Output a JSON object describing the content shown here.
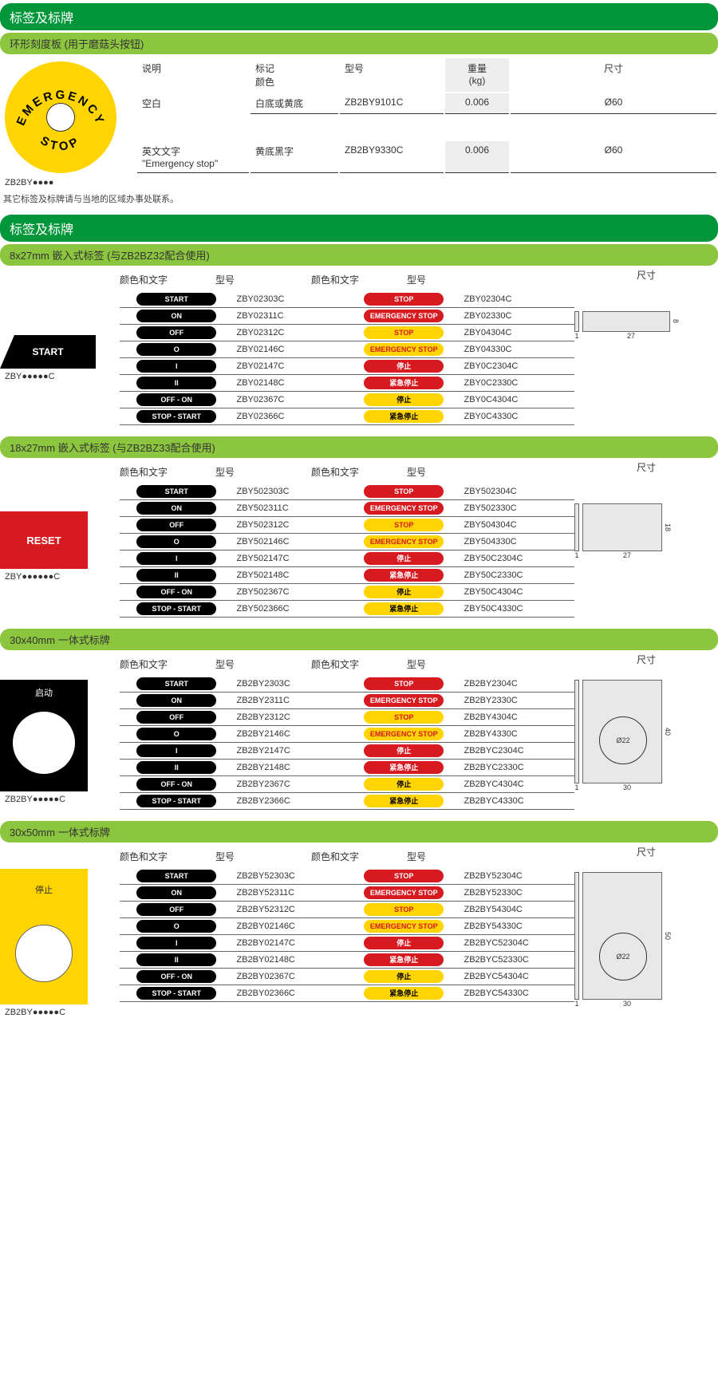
{
  "colors": {
    "primary_green": "#009639",
    "light_green": "#8cc63f",
    "red": "#d71920",
    "yellow": "#ffd400",
    "black": "#000000",
    "grey_bg": "#e8e8e8"
  },
  "section1": {
    "title": "标签及标牌",
    "subtitle": "环形刻度板 (用于磨菇头按钮)",
    "headers": {
      "desc": "说明",
      "mark_color": "标记\n颜色",
      "model": "型号",
      "weight": "重量\n(kg)",
      "size": "尺寸"
    },
    "rows": [
      {
        "desc": "空白",
        "mark": "白底或黄底",
        "model": "ZB2BY9101C",
        "weight": "0.006",
        "size": "Ø60"
      },
      {
        "desc": "英文文字\n\"Emergency stop\"",
        "mark": "黄底黑字",
        "model": "ZB2BY9330C",
        "weight": "0.006",
        "size": "Ø60"
      }
    ],
    "thumb_label": "ZB2BY●●●●",
    "circle_text_top": "EMERGENCY",
    "circle_text_bottom": "STOP",
    "note": "其它标签及标牌请与当地的区域办事处联系。"
  },
  "section2": {
    "title": "标签及标牌",
    "subtitle": "8x27mm 嵌入式标签 (与ZB2BZ32配合使用)",
    "headers": {
      "c1": "颜色和文字",
      "m1": "型号",
      "c2": "颜色和文字",
      "m2": "型号",
      "size": "尺寸"
    },
    "thumb_text": "START",
    "thumb_label": "ZBY●●●●●C",
    "rows": [
      {
        "p1": {
          "t": "START",
          "cls": "pill-black"
        },
        "m1": "ZBY02303C",
        "p2": {
          "t": "STOP",
          "cls": "pill-red"
        },
        "m2": "ZBY02304C"
      },
      {
        "p1": {
          "t": "ON",
          "cls": "pill-black"
        },
        "m1": "ZBY02311C",
        "p2": {
          "t": "EMERGENCY STOP",
          "cls": "pill-red"
        },
        "m2": "ZBY02330C"
      },
      {
        "p1": {
          "t": "OFF",
          "cls": "pill-black"
        },
        "m1": "ZBY02312C",
        "p2": {
          "t": "STOP",
          "cls": "pill-yellow-red"
        },
        "m2": "ZBY04304C"
      },
      {
        "p1": {
          "t": "O",
          "cls": "pill-black"
        },
        "m1": "ZBY02146C",
        "p2": {
          "t": "EMERGENCY STOP",
          "cls": "pill-yellow-red"
        },
        "m2": "ZBY04330C"
      },
      {
        "p1": {
          "t": "I",
          "cls": "pill-black"
        },
        "m1": "ZBY02147C",
        "p2": {
          "t": "停止",
          "cls": "pill-red"
        },
        "m2": "ZBY0C2304C"
      },
      {
        "p1": {
          "t": "II",
          "cls": "pill-black"
        },
        "m1": "ZBY02148C",
        "p2": {
          "t": "紧急停止",
          "cls": "pill-red"
        },
        "m2": "ZBY0C2330C"
      },
      {
        "p1": {
          "t": "OFF - ON",
          "cls": "pill-black"
        },
        "m1": "ZBY02367C",
        "p2": {
          "t": "停止",
          "cls": "pill-yellow-black"
        },
        "m2": "ZBY0C4304C"
      },
      {
        "p1": {
          "t": "STOP - START",
          "cls": "pill-black"
        },
        "m1": "ZBY02366C",
        "p2": {
          "t": "紧急停止",
          "cls": "pill-yellow-black"
        },
        "m2": "ZBY0C4330C"
      }
    ],
    "dim": {
      "w": "27",
      "h": "8",
      "t": "1"
    }
  },
  "section3": {
    "subtitle": "18x27mm 嵌入式标签 (与ZB2BZ33配合使用)",
    "headers": {
      "c1": "颜色和文字",
      "m1": "型号",
      "c2": "颜色和文字",
      "m2": "型号",
      "size": "尺寸"
    },
    "thumb_text": "RESET",
    "thumb_label": "ZBY●●●●●●C",
    "rows": [
      {
        "p1": {
          "t": "START",
          "cls": "pill-black"
        },
        "m1": "ZBY502303C",
        "p2": {
          "t": "STOP",
          "cls": "pill-red"
        },
        "m2": "ZBY502304C"
      },
      {
        "p1": {
          "t": "ON",
          "cls": "pill-black"
        },
        "m1": "ZBY502311C",
        "p2": {
          "t": "EMERGENCY STOP",
          "cls": "pill-red"
        },
        "m2": "ZBY502330C"
      },
      {
        "p1": {
          "t": "OFF",
          "cls": "pill-black"
        },
        "m1": "ZBY502312C",
        "p2": {
          "t": "STOP",
          "cls": "pill-yellow-red"
        },
        "m2": "ZBY504304C"
      },
      {
        "p1": {
          "t": "O",
          "cls": "pill-black"
        },
        "m1": "ZBY502146C",
        "p2": {
          "t": "EMERGENCY STOP",
          "cls": "pill-yellow-red"
        },
        "m2": "ZBY504330C"
      },
      {
        "p1": {
          "t": "I",
          "cls": "pill-black"
        },
        "m1": "ZBY502147C",
        "p2": {
          "t": "停止",
          "cls": "pill-red"
        },
        "m2": "ZBY50C2304C"
      },
      {
        "p1": {
          "t": "II",
          "cls": "pill-black"
        },
        "m1": "ZBY502148C",
        "p2": {
          "t": "紧急停止",
          "cls": "pill-red"
        },
        "m2": "ZBY50C2330C"
      },
      {
        "p1": {
          "t": "OFF - ON",
          "cls": "pill-black"
        },
        "m1": "ZBY502367C",
        "p2": {
          "t": "停止",
          "cls": "pill-yellow-black"
        },
        "m2": "ZBY50C4304C"
      },
      {
        "p1": {
          "t": "STOP - START",
          "cls": "pill-black"
        },
        "m1": "ZBY502366C",
        "p2": {
          "t": "紧急停止",
          "cls": "pill-yellow-black"
        },
        "m2": "ZBY50C4330C"
      }
    ],
    "dim": {
      "w": "27",
      "h": "18",
      "t": "1"
    }
  },
  "section4": {
    "subtitle": "30x40mm 一体式标牌",
    "headers": {
      "c1": "颜色和文字",
      "m1": "型号",
      "c2": "颜色和文字",
      "m2": "型号",
      "size": "尺寸"
    },
    "thumb_text": "启动",
    "thumb_label": "ZB2BY●●●●●C",
    "rows": [
      {
        "p1": {
          "t": "START",
          "cls": "pill-black"
        },
        "m1": "ZB2BY2303C",
        "p2": {
          "t": "STOP",
          "cls": "pill-red"
        },
        "m2": "ZB2BY2304C"
      },
      {
        "p1": {
          "t": "ON",
          "cls": "pill-black"
        },
        "m1": "ZB2BY2311C",
        "p2": {
          "t": "EMERGENCY STOP",
          "cls": "pill-red"
        },
        "m2": "ZB2BY2330C"
      },
      {
        "p1": {
          "t": "OFF",
          "cls": "pill-black"
        },
        "m1": "ZB2BY2312C",
        "p2": {
          "t": "STOP",
          "cls": "pill-yellow-red"
        },
        "m2": "ZB2BY4304C"
      },
      {
        "p1": {
          "t": "O",
          "cls": "pill-black"
        },
        "m1": "ZB2BY2146C",
        "p2": {
          "t": "EMERGENCY STOP",
          "cls": "pill-yellow-red"
        },
        "m2": "ZB2BY4330C"
      },
      {
        "p1": {
          "t": "I",
          "cls": "pill-black"
        },
        "m1": "ZB2BY2147C",
        "p2": {
          "t": "停止",
          "cls": "pill-red"
        },
        "m2": "ZB2BYC2304C"
      },
      {
        "p1": {
          "t": "II",
          "cls": "pill-black"
        },
        "m1": "ZB2BY2148C",
        "p2": {
          "t": "紧急停止",
          "cls": "pill-red"
        },
        "m2": "ZB2BYC2330C"
      },
      {
        "p1": {
          "t": "OFF - ON",
          "cls": "pill-black"
        },
        "m1": "ZB2BY2367C",
        "p2": {
          "t": "停止",
          "cls": "pill-yellow-black"
        },
        "m2": "ZB2BYC4304C"
      },
      {
        "p1": {
          "t": "STOP - START",
          "cls": "pill-black"
        },
        "m1": "ZB2BY2366C",
        "p2": {
          "t": "紧急停止",
          "cls": "pill-yellow-black"
        },
        "m2": "ZB2BYC4330C"
      }
    ],
    "dim": {
      "w": "30",
      "h": "40",
      "t": "1",
      "hole": "Ø22"
    }
  },
  "section5": {
    "subtitle": "30x50mm 一体式标牌",
    "headers": {
      "c1": "颜色和文字",
      "m1": "型号",
      "c2": "颜色和文字",
      "m2": "型号",
      "size": "尺寸"
    },
    "thumb_text": "停止",
    "thumb_label": "ZB2BY●●●●●C",
    "rows": [
      {
        "p1": {
          "t": "START",
          "cls": "pill-black"
        },
        "m1": "ZB2BY52303C",
        "p2": {
          "t": "STOP",
          "cls": "pill-red"
        },
        "m2": "ZB2BY52304C"
      },
      {
        "p1": {
          "t": "ON",
          "cls": "pill-black"
        },
        "m1": "ZB2BY52311C",
        "p2": {
          "t": "EMERGENCY STOP",
          "cls": "pill-red"
        },
        "m2": "ZB2BY52330C"
      },
      {
        "p1": {
          "t": "OFF",
          "cls": "pill-black"
        },
        "m1": "ZB2BY52312C",
        "p2": {
          "t": "STOP",
          "cls": "pill-yellow-red"
        },
        "m2": "ZB2BY54304C"
      },
      {
        "p1": {
          "t": "O",
          "cls": "pill-black"
        },
        "m1": "ZB2BY02146C",
        "p2": {
          "t": "EMERGENCY STOP",
          "cls": "pill-yellow-red"
        },
        "m2": "ZB2BY54330C"
      },
      {
        "p1": {
          "t": "I",
          "cls": "pill-black"
        },
        "m1": "ZB2BY02147C",
        "p2": {
          "t": "停止",
          "cls": "pill-red"
        },
        "m2": "ZB2BYC52304C"
      },
      {
        "p1": {
          "t": "II",
          "cls": "pill-black"
        },
        "m1": "ZB2BY02148C",
        "p2": {
          "t": "紧急停止",
          "cls": "pill-red"
        },
        "m2": "ZB2BYC52330C"
      },
      {
        "p1": {
          "t": "OFF - ON",
          "cls": "pill-black"
        },
        "m1": "ZB2BY02367C",
        "p2": {
          "t": "停止",
          "cls": "pill-yellow-black"
        },
        "m2": "ZB2BYC54304C"
      },
      {
        "p1": {
          "t": "STOP - START",
          "cls": "pill-black"
        },
        "m1": "ZB2BY02366C",
        "p2": {
          "t": "紧急停止",
          "cls": "pill-yellow-black"
        },
        "m2": "ZB2BYC54330C"
      }
    ],
    "dim": {
      "w": "30",
      "h": "50",
      "t": "1",
      "hole": "Ø22"
    }
  }
}
